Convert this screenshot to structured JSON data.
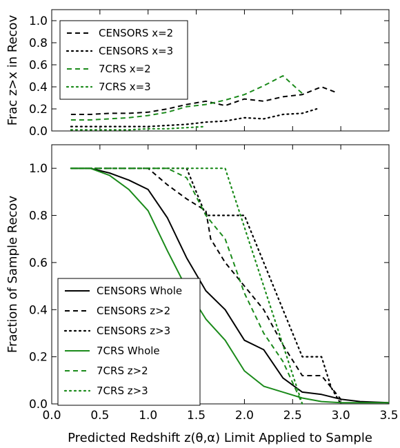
{
  "chart_data": [
    {
      "type": "line",
      "panel": "top",
      "xlabel": "",
      "ylabel": "Frac z>x in Recov",
      "xlim": [
        0.0,
        3.5
      ],
      "ylim": [
        0.0,
        1.1
      ],
      "yticks": [
        "0.0",
        "0.2",
        "0.4",
        "0.6",
        "0.8",
        "1.0"
      ],
      "grid": false,
      "legend_position": "top-left",
      "series": [
        {
          "name": "CENSORS x=2",
          "color": "#000000",
          "style": "dashed",
          "x": [
            0.2,
            0.4,
            0.6,
            0.8,
            1.0,
            1.2,
            1.4,
            1.6,
            1.8,
            2.0,
            2.2,
            2.4,
            2.6,
            2.8,
            2.95
          ],
          "y": [
            0.15,
            0.15,
            0.16,
            0.16,
            0.17,
            0.2,
            0.24,
            0.27,
            0.23,
            0.29,
            0.27,
            0.31,
            0.33,
            0.4,
            0.35
          ]
        },
        {
          "name": "CENSORS x=3",
          "color": "#000000",
          "style": "dotted",
          "x": [
            0.2,
            0.4,
            0.6,
            0.8,
            1.0,
            1.2,
            1.4,
            1.6,
            1.8,
            2.0,
            2.2,
            2.4,
            2.6,
            2.75
          ],
          "y": [
            0.04,
            0.04,
            0.04,
            0.04,
            0.04,
            0.05,
            0.06,
            0.08,
            0.09,
            0.12,
            0.11,
            0.15,
            0.16,
            0.2
          ]
        },
        {
          "name": "7CRS x=2",
          "color": "#1a8a1a",
          "style": "dashed",
          "x": [
            0.2,
            0.4,
            0.6,
            0.8,
            1.0,
            1.2,
            1.4,
            1.6,
            1.8,
            2.0,
            2.2,
            2.4,
            2.6
          ],
          "y": [
            0.1,
            0.1,
            0.11,
            0.12,
            0.14,
            0.17,
            0.22,
            0.24,
            0.28,
            0.33,
            0.41,
            0.5,
            0.34
          ]
        },
        {
          "name": "7CRS x=3",
          "color": "#1a8a1a",
          "style": "dotted",
          "x": [
            0.2,
            0.4,
            0.6,
            0.8,
            1.0,
            1.2,
            1.4,
            1.6
          ],
          "y": [
            0.01,
            0.01,
            0.01,
            0.01,
            0.02,
            0.02,
            0.03,
            0.04
          ]
        }
      ]
    },
    {
      "type": "line",
      "panel": "bottom",
      "xlabel": "Predicted Redshift z(θ,α) Limit Applied to Sample",
      "ylabel": "Fraction of Sample Recov",
      "xlim": [
        0.0,
        3.5
      ],
      "ylim": [
        0.0,
        1.1
      ],
      "xticks": [
        "0.0",
        "0.5",
        "1.0",
        "1.5",
        "2.0",
        "2.5",
        "3.0",
        "3.5"
      ],
      "yticks": [
        "0.0",
        "0.2",
        "0.4",
        "0.6",
        "0.8",
        "1.0"
      ],
      "grid": false,
      "legend_position": "lower-left",
      "series": [
        {
          "name": "CENSORS Whole",
          "color": "#000000",
          "style": "solid",
          "x": [
            0.2,
            0.4,
            0.6,
            0.8,
            1.0,
            1.2,
            1.4,
            1.6,
            1.8,
            2.0,
            2.2,
            2.4,
            2.6,
            2.8,
            3.0,
            3.2,
            3.5
          ],
          "y": [
            1.0,
            1.0,
            0.98,
            0.95,
            0.91,
            0.79,
            0.62,
            0.48,
            0.4,
            0.27,
            0.23,
            0.11,
            0.05,
            0.04,
            0.02,
            0.01,
            0.005
          ]
        },
        {
          "name": "CENSORS z>2",
          "color": "#000000",
          "style": "dashed",
          "x": [
            0.2,
            0.4,
            0.6,
            0.8,
            1.0,
            1.2,
            1.4,
            1.6,
            1.65,
            1.8,
            2.0,
            2.2,
            2.4,
            2.6,
            2.8,
            3.0
          ],
          "y": [
            1.0,
            1.0,
            1.0,
            1.0,
            1.0,
            0.93,
            0.87,
            0.82,
            0.7,
            0.6,
            0.5,
            0.4,
            0.25,
            0.12,
            0.12,
            0.02
          ]
        },
        {
          "name": "CENSORS z>3",
          "color": "#000000",
          "style": "dotted",
          "x": [
            0.2,
            0.4,
            0.6,
            0.8,
            1.0,
            1.2,
            1.4,
            1.6,
            1.8,
            2.0,
            2.2,
            2.4,
            2.6,
            2.8,
            2.9,
            3.0
          ],
          "y": [
            1.0,
            1.0,
            1.0,
            1.0,
            1.0,
            1.0,
            1.0,
            0.8,
            0.8,
            0.8,
            0.6,
            0.4,
            0.2,
            0.2,
            0.07,
            0.0
          ]
        },
        {
          "name": "7CRS Whole",
          "color": "#1a8a1a",
          "style": "solid",
          "x": [
            0.2,
            0.4,
            0.6,
            0.8,
            1.0,
            1.2,
            1.4,
            1.6,
            1.8,
            2.0,
            2.2,
            2.4,
            2.6,
            2.8,
            3.0,
            3.2,
            3.5
          ],
          "y": [
            1.0,
            1.0,
            0.97,
            0.91,
            0.82,
            0.65,
            0.49,
            0.36,
            0.27,
            0.14,
            0.075,
            0.05,
            0.025,
            0.01,
            0.005,
            0.005,
            0.005
          ]
        },
        {
          "name": "7CRS z>2",
          "color": "#1a8a1a",
          "style": "dashed",
          "x": [
            0.2,
            0.4,
            0.6,
            0.8,
            1.0,
            1.2,
            1.4,
            1.6,
            1.8,
            2.0,
            2.2,
            2.4,
            2.6
          ],
          "y": [
            1.0,
            1.0,
            1.0,
            1.0,
            1.0,
            1.0,
            0.96,
            0.8,
            0.7,
            0.47,
            0.3,
            0.18,
            0.0
          ]
        },
        {
          "name": "7CRS z>3",
          "color": "#1a8a1a",
          "style": "dotted",
          "x": [
            0.2,
            0.4,
            0.6,
            0.8,
            1.0,
            1.2,
            1.4,
            1.6,
            1.8,
            2.0,
            2.2,
            2.4,
            2.6
          ],
          "y": [
            1.0,
            1.0,
            1.0,
            1.0,
            1.0,
            1.0,
            1.0,
            1.0,
            1.0,
            0.75,
            0.5,
            0.25,
            0.0
          ]
        }
      ]
    }
  ]
}
